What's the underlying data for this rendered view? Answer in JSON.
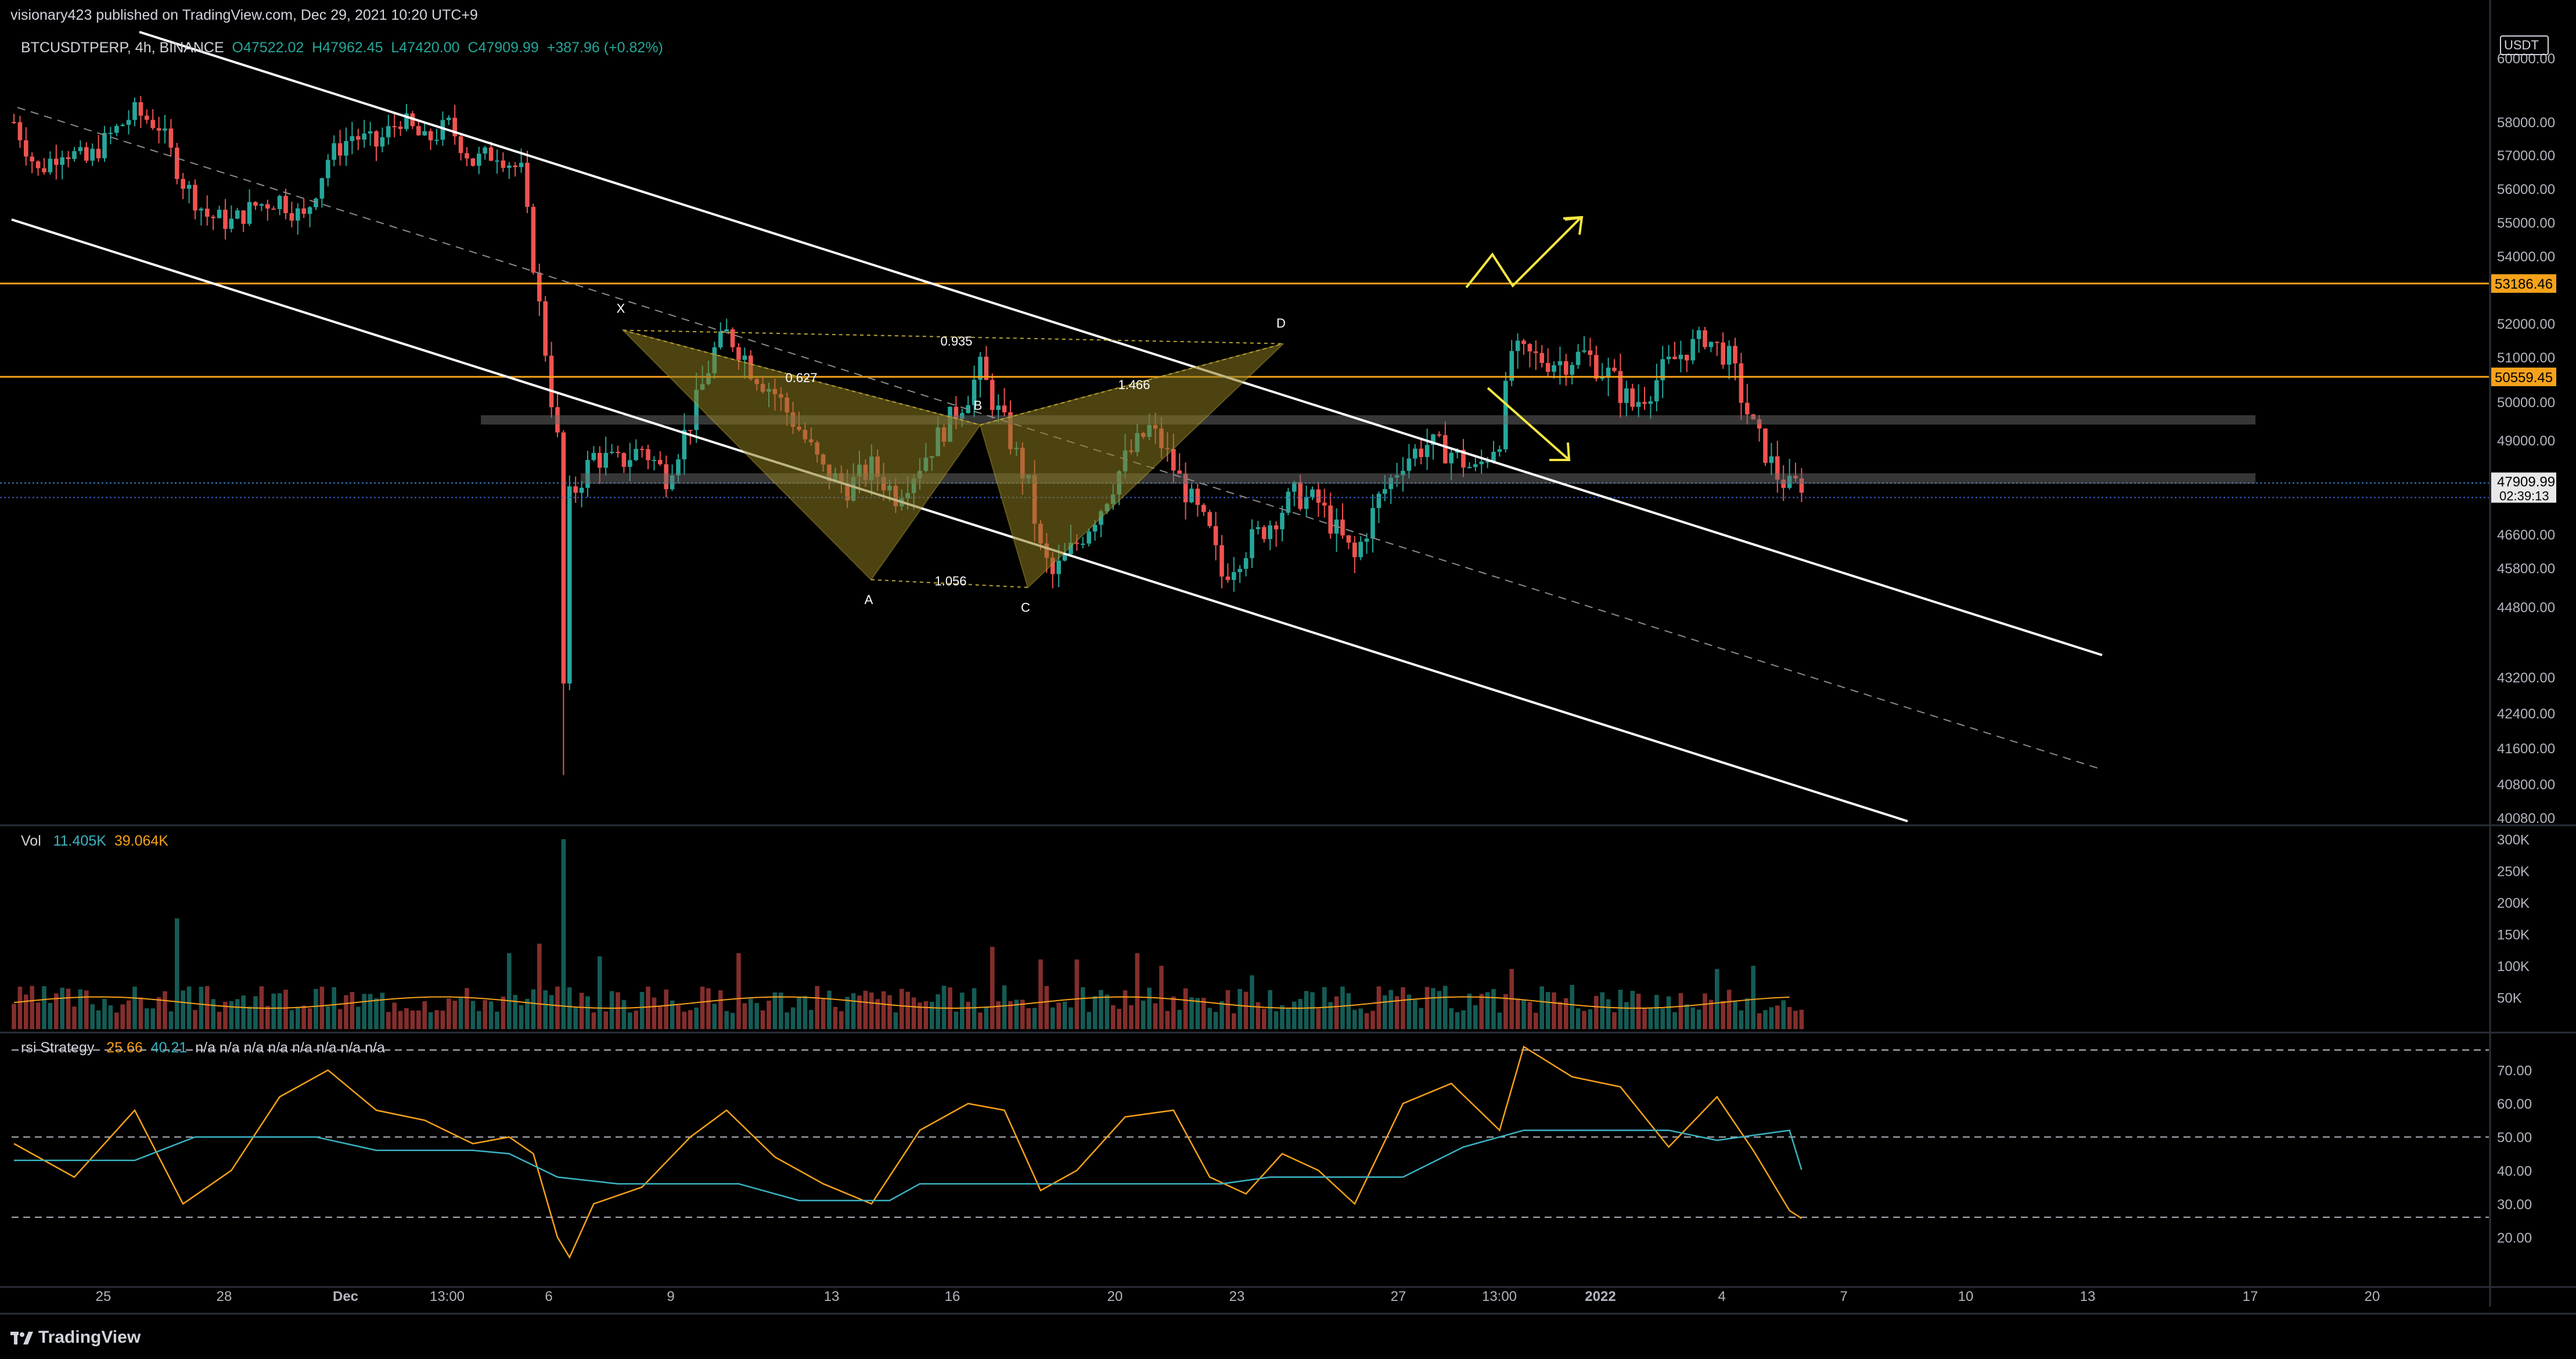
{
  "header": {
    "published": "visionary423 published on TradingView.com, Dec 29, 2021 10:20 UTC+9"
  },
  "symbol": {
    "name": "BTCUSDTPERP, 4h, BINANCE",
    "open": "O47522.02",
    "high": "H47962.45",
    "low": "L47420.00",
    "close": "C47909.99",
    "change": "+387.96 (+0.82%)"
  },
  "currency": "USDT",
  "footer": {
    "brand": "TradingView"
  },
  "volume_legend": {
    "name": "Vol",
    "v1": "11.405K",
    "v2": "39.064K"
  },
  "rsi_legend": {
    "name": "rsi Strategy",
    "v1": "25.66",
    "v2": "40.21",
    "na": "n/a n/a n/a n/a n/a n/a n/a n/a"
  },
  "colors": {
    "up": "#26a69a",
    "down": "#ef5350",
    "accent": "#f7a21b",
    "yellow": "#f5e642",
    "pattern": "#8a7a1f"
  },
  "chart_data": [
    {
      "type": "candlestick",
      "title": "BTCUSDTPERP, 4h, BINANCE",
      "y_ticks": [
        60000,
        58000,
        57000,
        56000,
        55000,
        54000,
        52000,
        51000,
        50000,
        49000,
        46600,
        45800,
        44800,
        43200,
        42400,
        41600,
        40800,
        40080
      ],
      "y_tick_labels": [
        "60000.00",
        "58000.00",
        "57000.00",
        "56000.00",
        "55000.00",
        "54000.00",
        "52000.00",
        "51000.00",
        "50000.00",
        "49000.00",
        "46600.00",
        "45800.00",
        "44800.00",
        "43200.00",
        "42400.00",
        "41600.00",
        "40800.00",
        "40080.00"
      ],
      "x_tick_labels": [
        "25",
        "28",
        "Dec",
        "13:00",
        "6",
        "9",
        "13",
        "16",
        "20",
        "23",
        "27",
        "13:00",
        "2022",
        "4",
        "7",
        "10",
        "13",
        "17",
        "20"
      ],
      "price_levels": [
        {
          "value": 53186.46,
          "label": "53186.46",
          "color": "#f7a21b"
        },
        {
          "value": 50559.45,
          "label": "50559.45",
          "color": "#f7a21b"
        }
      ],
      "last_price": {
        "value": 47909.99,
        "label": "47909.99",
        "countdown": "02:39:13"
      },
      "harmonic_points": [
        {
          "label": "X",
          "price": 51800
        },
        {
          "label": "A",
          "price": 45500
        },
        {
          "label": "B",
          "price": 49400
        },
        {
          "label": "C",
          "price": 45300
        },
        {
          "label": "D",
          "price": 51400
        }
      ],
      "ratios": [
        "0.935",
        "0.627",
        "1.466",
        "1.056"
      ],
      "close_path": [
        [
          0,
          58000
        ],
        [
          4,
          56500
        ],
        [
          8,
          57200
        ],
        [
          12,
          56800
        ],
        [
          16,
          57600
        ],
        [
          20,
          58300
        ],
        [
          24,
          57900
        ],
        [
          28,
          56200
        ],
        [
          32,
          55200
        ],
        [
          36,
          55000
        ],
        [
          40,
          55500
        ],
        [
          44,
          55700
        ],
        [
          48,
          55100
        ],
        [
          52,
          56900
        ],
        [
          56,
          57600
        ],
        [
          60,
          57300
        ],
        [
          64,
          58100
        ],
        [
          68,
          57400
        ],
        [
          72,
          57900
        ],
        [
          76,
          56800
        ],
        [
          80,
          57100
        ],
        [
          84,
          56500
        ],
        [
          86,
          53800
        ],
        [
          88,
          51200
        ],
        [
          90,
          49000
        ],
        [
          91,
          43000
        ],
        [
          92,
          47500
        ],
        [
          96,
          48600
        ],
        [
          100,
          48400
        ],
        [
          104,
          48800
        ],
        [
          108,
          48100
        ],
        [
          112,
          49500
        ],
        [
          116,
          51200
        ],
        [
          118,
          51700
        ],
        [
          122,
          50800
        ],
        [
          126,
          50200
        ],
        [
          130,
          49300
        ],
        [
          134,
          48200
        ],
        [
          138,
          47800
        ],
        [
          142,
          48300
        ],
        [
          146,
          47600
        ],
        [
          150,
          48400
        ],
        [
          154,
          49300
        ],
        [
          158,
          50200
        ],
        [
          160,
          50700
        ],
        [
          164,
          49400
        ],
        [
          168,
          47800
        ],
        [
          170,
          46200
        ],
        [
          172,
          45600
        ],
        [
          176,
          46400
        ],
        [
          180,
          47300
        ],
        [
          184,
          48500
        ],
        [
          188,
          49300
        ],
        [
          190,
          48900
        ],
        [
          194,
          47700
        ],
        [
          198,
          46600
        ],
        [
          200,
          45600
        ],
        [
          204,
          46300
        ],
        [
          208,
          46900
        ],
        [
          212,
          47600
        ],
        [
          216,
          47400
        ],
        [
          218,
          46900
        ],
        [
          222,
          46000
        ],
        [
          226,
          47500
        ],
        [
          230,
          48500
        ],
        [
          234,
          48900
        ],
        [
          238,
          48700
        ],
        [
          242,
          48200
        ],
        [
          246,
          49100
        ],
        [
          248,
          51200
        ],
        [
          252,
          51000
        ],
        [
          256,
          50900
        ],
        [
          260,
          51100
        ],
        [
          264,
          50600
        ],
        [
          268,
          49900
        ],
        [
          272,
          50500
        ],
        [
          276,
          51100
        ],
        [
          280,
          51600
        ],
        [
          284,
          51000
        ],
        [
          288,
          49300
        ],
        [
          292,
          48100
        ],
        [
          294,
          47800
        ],
        [
          296,
          47910
        ]
      ]
    },
    {
      "type": "bar",
      "title": "Vol",
      "y_tick_labels": [
        "300K",
        "250K",
        "200K",
        "150K",
        "100K",
        "50K"
      ],
      "y_ticks": [
        300000,
        250000,
        200000,
        150000,
        100000,
        50000
      ]
    },
    {
      "type": "line",
      "title": "rsi Strategy",
      "y_tick_labels": [
        "70.00",
        "60.00",
        "50.00",
        "40.00",
        "30.00",
        "20.00"
      ],
      "y_ticks": [
        70,
        60,
        50,
        40,
        30,
        20
      ],
      "series": [
        {
          "name": "rsi",
          "color": "#f7a21b",
          "points": [
            [
              0,
              48
            ],
            [
              10,
              38
            ],
            [
              20,
              58
            ],
            [
              28,
              30
            ],
            [
              36,
              40
            ],
            [
              44,
              62
            ],
            [
              52,
              70
            ],
            [
              60,
              58
            ],
            [
              68,
              55
            ],
            [
              76,
              48
            ],
            [
              82,
              50
            ],
            [
              86,
              45
            ],
            [
              90,
              20
            ],
            [
              92,
              14
            ],
            [
              96,
              30
            ],
            [
              104,
              35
            ],
            [
              112,
              50
            ],
            [
              118,
              58
            ],
            [
              126,
              44
            ],
            [
              134,
              36
            ],
            [
              142,
              30
            ],
            [
              150,
              52
            ],
            [
              158,
              60
            ],
            [
              164,
              58
            ],
            [
              170,
              34
            ],
            [
              176,
              40
            ],
            [
              184,
              56
            ],
            [
              192,
              58
            ],
            [
              198,
              38
            ],
            [
              204,
              33
            ],
            [
              210,
              45
            ],
            [
              216,
              40
            ],
            [
              222,
              30
            ],
            [
              230,
              60
            ],
            [
              238,
              66
            ],
            [
              246,
              52
            ],
            [
              250,
              77
            ],
            [
              258,
              68
            ],
            [
              266,
              65
            ],
            [
              274,
              47
            ],
            [
              282,
              62
            ],
            [
              288,
              46
            ],
            [
              294,
              28
            ],
            [
              296,
              25.66
            ]
          ]
        },
        {
          "name": "signal",
          "color": "#3bb3c3",
          "points": [
            [
              0,
              43
            ],
            [
              20,
              43
            ],
            [
              30,
              50
            ],
            [
              50,
              50
            ],
            [
              60,
              46
            ],
            [
              76,
              46
            ],
            [
              82,
              45
            ],
            [
              90,
              38
            ],
            [
              100,
              36
            ],
            [
              120,
              36
            ],
            [
              130,
              31
            ],
            [
              145,
              31
            ],
            [
              150,
              36
            ],
            [
              200,
              36
            ],
            [
              208,
              38
            ],
            [
              230,
              38
            ],
            [
              240,
              47
            ],
            [
              250,
              52
            ],
            [
              274,
              52
            ],
            [
              282,
              49
            ],
            [
              294,
              52
            ],
            [
              296,
              40.21
            ]
          ]
        }
      ]
    }
  ]
}
